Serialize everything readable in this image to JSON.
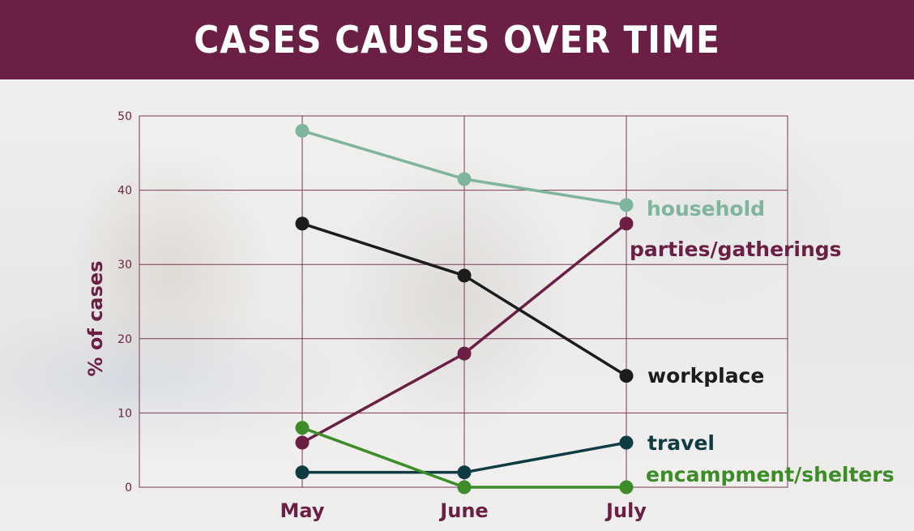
{
  "header": {
    "title": "CASES CAUSES OVER TIME"
  },
  "colors": {
    "header_bg": "#6b1f45",
    "grid": "#7a3a58",
    "axis_text": "#6b1f45"
  },
  "chart_data": {
    "type": "line",
    "title": "CASES CAUSES OVER TIME",
    "xlabel": "",
    "ylabel": "% of cases",
    "ylim": [
      0,
      50
    ],
    "yticks": [
      0,
      10,
      20,
      30,
      40,
      50
    ],
    "categories": [
      "May",
      "June",
      "July"
    ],
    "grid": true,
    "series": [
      {
        "name": "household",
        "color": "#7fb59c",
        "values": [
          48,
          41.5,
          38
        ]
      },
      {
        "name": "parties/gatherings",
        "color": "#6b1f45",
        "values": [
          6,
          18,
          35.5
        ]
      },
      {
        "name": "workplace",
        "color": "#1c1c1c",
        "values": [
          35.5,
          28.5,
          15
        ]
      },
      {
        "name": "travel",
        "color": "#0f3c42",
        "values": [
          2,
          2,
          6
        ]
      },
      {
        "name": "encampment/shelters",
        "color": "#3c8c28",
        "values": [
          8,
          0,
          0
        ]
      }
    ]
  }
}
